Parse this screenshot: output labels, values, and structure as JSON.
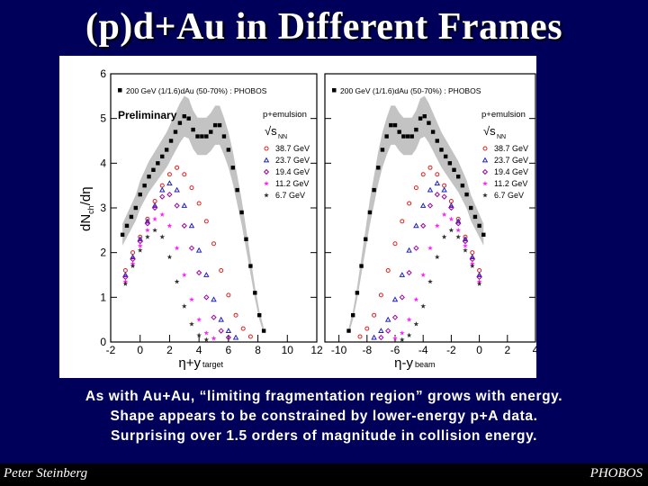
{
  "slide": {
    "title": "(p)d+Au in Different Frames",
    "caption": [
      "As with Au+Au, “limiting fragmentation region” grows with energy.",
      "Shape appears to be constrained by lower-energy p+A data.",
      "Surprising over 1.5 orders of magnitude in collision energy."
    ],
    "footer_left": "Peter Steinberg",
    "footer_right": "PHOBOS"
  },
  "colors": {
    "background": "#00005a",
    "band": "#b8b8b8",
    "dau": "#000000",
    "s38": "#e02020",
    "s237": "#2020c0",
    "s194": "#a000a0",
    "s112": "#ff20ff",
    "s67": "#303030"
  },
  "chart_data": [
    {
      "type": "scatter",
      "panel": "left",
      "ylabel": "dNch/dη",
      "ylabel_main": "dN",
      "ylabel_sub": "ch",
      "ylabel_tail": "/dη",
      "xlabel_main": "η+y",
      "xlabel_sub": "target",
      "xlim": [
        -2,
        12
      ],
      "ylim": [
        0,
        6
      ],
      "xticks": [
        "-2",
        "0",
        "2",
        "4",
        "6",
        "8",
        "10",
        "12"
      ],
      "yticks": [
        "0",
        "1",
        "2",
        "3",
        "4",
        "5",
        "6"
      ],
      "header": "200 GeV (1/1.6)dAu (50-70%) : PHOBOS",
      "preliminary": "Preliminary",
      "legend_title": "p+emulsion",
      "legend_sqrt": "√s",
      "legend_sqrt_sub": "NN",
      "legend_position": "right",
      "series": [
        {
          "name": "200 GeV (1/1.6)dAu (50-70%) : PHOBOS",
          "key": "dau",
          "marker": "square",
          "x": [
            -1.2,
            -0.9,
            -0.6,
            -0.3,
            0.0,
            0.3,
            0.6,
            0.9,
            1.2,
            1.5,
            1.8,
            2.1,
            2.4,
            2.7,
            3.0,
            3.3,
            3.6,
            3.9,
            4.2,
            4.5,
            4.8,
            5.1,
            5.4,
            5.7,
            6.0,
            6.3,
            6.6,
            6.9,
            7.2,
            7.5,
            7.8,
            8.1,
            8.4
          ],
          "y": [
            2.4,
            2.6,
            2.8,
            3.0,
            3.3,
            3.5,
            3.7,
            3.85,
            4.0,
            4.15,
            4.3,
            4.5,
            4.7,
            4.9,
            5.05,
            5.0,
            4.75,
            4.6,
            4.6,
            4.6,
            4.7,
            4.85,
            4.85,
            4.6,
            4.3,
            3.9,
            3.4,
            2.9,
            2.3,
            1.7,
            1.1,
            0.6,
            0.25
          ]
        },
        {
          "name": "38.7 GeV",
          "key": "s38",
          "marker": "circle",
          "x": [
            -1.0,
            -0.5,
            0.0,
            0.5,
            1.0,
            1.5,
            2.0,
            2.5,
            3.0,
            3.5,
            4.0,
            4.5,
            5.0,
            5.5,
            6.0,
            6.5,
            7.0,
            7.5
          ],
          "y": [
            1.6,
            2.0,
            2.35,
            2.75,
            3.15,
            3.5,
            3.75,
            3.9,
            3.75,
            3.45,
            3.1,
            2.7,
            2.2,
            1.6,
            1.05,
            0.6,
            0.3,
            0.12
          ]
        },
        {
          "name": "23.7 GeV",
          "key": "s237",
          "marker": "triangle",
          "x": [
            -1.0,
            -0.5,
            0.0,
            0.5,
            1.0,
            1.5,
            2.0,
            2.5,
            3.0,
            3.5,
            4.0,
            4.5,
            5.0,
            5.5,
            6.0,
            6.5
          ],
          "y": [
            1.5,
            1.9,
            2.3,
            2.7,
            3.05,
            3.4,
            3.55,
            3.4,
            3.05,
            2.6,
            2.05,
            1.5,
            0.95,
            0.5,
            0.25,
            0.1
          ]
        },
        {
          "name": "19.4 GeV",
          "key": "s194",
          "marker": "diamond",
          "x": [
            -1.0,
            -0.5,
            0.0,
            0.5,
            1.0,
            1.5,
            2.0,
            2.5,
            3.0,
            3.5,
            4.0,
            4.5,
            5.0,
            5.5,
            6.0
          ],
          "y": [
            1.45,
            1.85,
            2.25,
            2.65,
            3.0,
            3.25,
            3.3,
            3.05,
            2.6,
            2.1,
            1.55,
            1.0,
            0.55,
            0.25,
            0.1
          ]
        },
        {
          "name": "11.2 GeV",
          "key": "s112",
          "marker": "star",
          "x": [
            -1.0,
            -0.5,
            0.0,
            0.5,
            1.0,
            1.5,
            2.0,
            2.5,
            3.0,
            3.5,
            4.0,
            4.5,
            5.0
          ],
          "y": [
            1.35,
            1.75,
            2.15,
            2.5,
            2.75,
            2.85,
            2.6,
            2.1,
            1.5,
            0.95,
            0.5,
            0.2,
            0.08
          ]
        },
        {
          "name": "6.7 GeV",
          "key": "s67",
          "marker": "star",
          "x": [
            -1.0,
            -0.5,
            0.0,
            0.5,
            1.0,
            1.5,
            2.0,
            2.5,
            3.0,
            3.5,
            4.0,
            4.5
          ],
          "y": [
            1.3,
            1.7,
            2.05,
            2.35,
            2.5,
            2.35,
            1.9,
            1.35,
            0.8,
            0.4,
            0.15,
            0.05
          ]
        }
      ]
    },
    {
      "type": "scatter",
      "panel": "right",
      "xlabel_main": "η-y",
      "xlabel_sub": "beam",
      "xlim": [
        -11,
        4
      ],
      "ylim": [
        0,
        6
      ],
      "xticks": [
        "-10",
        "-8",
        "-6",
        "-4",
        "-2",
        "0",
        "2",
        "4"
      ],
      "header": "200 GeV (1/1.6)dAu (50-70%) : PHOBOS",
      "legend_title": "p+emulsion",
      "legend_sqrt": "√s",
      "legend_sqrt_sub": "NN",
      "legend_position": "right",
      "series": [
        {
          "name": "200 GeV (1/1.6)dAu (50-70%) : PHOBOS",
          "key": "dau",
          "marker": "square",
          "x": [
            -9.3,
            -9.0,
            -8.7,
            -8.4,
            -8.1,
            -7.8,
            -7.5,
            -7.2,
            -6.9,
            -6.6,
            -6.3,
            -6.0,
            -5.7,
            -5.4,
            -5.1,
            -4.8,
            -4.5,
            -4.2,
            -3.9,
            -3.6,
            -3.3,
            -3.0,
            -2.7,
            -2.4,
            -2.1,
            -1.8,
            -1.5,
            -1.2,
            -0.9,
            -0.6,
            -0.3,
            0.0,
            0.3
          ],
          "y": [
            0.25,
            0.6,
            1.1,
            1.7,
            2.3,
            2.9,
            3.4,
            3.9,
            4.3,
            4.6,
            4.85,
            4.85,
            4.7,
            4.6,
            4.6,
            4.6,
            4.75,
            5.0,
            5.05,
            4.9,
            4.7,
            4.5,
            4.3,
            4.15,
            4.0,
            3.85,
            3.7,
            3.5,
            3.3,
            3.0,
            2.8,
            2.6,
            2.4
          ]
        },
        {
          "name": "38.7 GeV",
          "key": "s38",
          "marker": "circle",
          "x": [
            -8.5,
            -8.0,
            -7.5,
            -7.0,
            -6.5,
            -6.0,
            -5.5,
            -5.0,
            -4.5,
            -4.0,
            -3.5,
            -3.0,
            -2.5,
            -2.0,
            -1.5,
            -1.0,
            -0.5,
            0.0
          ],
          "y": [
            0.12,
            0.3,
            0.6,
            1.05,
            1.6,
            2.2,
            2.7,
            3.1,
            3.45,
            3.75,
            3.9,
            3.75,
            3.5,
            3.15,
            2.75,
            2.35,
            2.0,
            1.6
          ]
        },
        {
          "name": "23.7 GeV",
          "key": "s237",
          "marker": "triangle",
          "x": [
            -7.5,
            -7.0,
            -6.5,
            -6.0,
            -5.5,
            -5.0,
            -4.5,
            -4.0,
            -3.5,
            -3.0,
            -2.5,
            -2.0,
            -1.5,
            -1.0,
            -0.5,
            0.0
          ],
          "y": [
            0.1,
            0.25,
            0.5,
            0.95,
            1.5,
            2.05,
            2.6,
            3.05,
            3.4,
            3.55,
            3.4,
            3.05,
            2.7,
            2.3,
            1.9,
            1.5
          ]
        },
        {
          "name": "19.4 GeV",
          "key": "s194",
          "marker": "diamond",
          "x": [
            -7.0,
            -6.5,
            -6.0,
            -5.5,
            -5.0,
            -4.5,
            -4.0,
            -3.5,
            -3.0,
            -2.5,
            -2.0,
            -1.5,
            -1.0,
            -0.5,
            0.0
          ],
          "y": [
            0.1,
            0.25,
            0.55,
            1.0,
            1.55,
            2.1,
            2.6,
            3.05,
            3.3,
            3.25,
            3.0,
            2.65,
            2.25,
            1.85,
            1.45
          ]
        },
        {
          "name": "11.2 GeV",
          "key": "s112",
          "marker": "star",
          "x": [
            -6.0,
            -5.5,
            -5.0,
            -4.5,
            -4.0,
            -3.5,
            -3.0,
            -2.5,
            -2.0,
            -1.5,
            -1.0,
            -0.5,
            0.0
          ],
          "y": [
            0.08,
            0.2,
            0.5,
            0.95,
            1.5,
            2.1,
            2.6,
            2.85,
            2.75,
            2.5,
            2.15,
            1.75,
            1.35
          ]
        },
        {
          "name": "6.7 GeV",
          "key": "s67",
          "marker": "star",
          "x": [
            -5.5,
            -5.0,
            -4.5,
            -4.0,
            -3.5,
            -3.0,
            -2.5,
            -2.0,
            -1.5,
            -1.0,
            -0.5,
            0.0
          ],
          "y": [
            0.05,
            0.15,
            0.4,
            0.8,
            1.35,
            1.9,
            2.35,
            2.5,
            2.35,
            2.05,
            1.7,
            1.3
          ]
        }
      ]
    }
  ]
}
